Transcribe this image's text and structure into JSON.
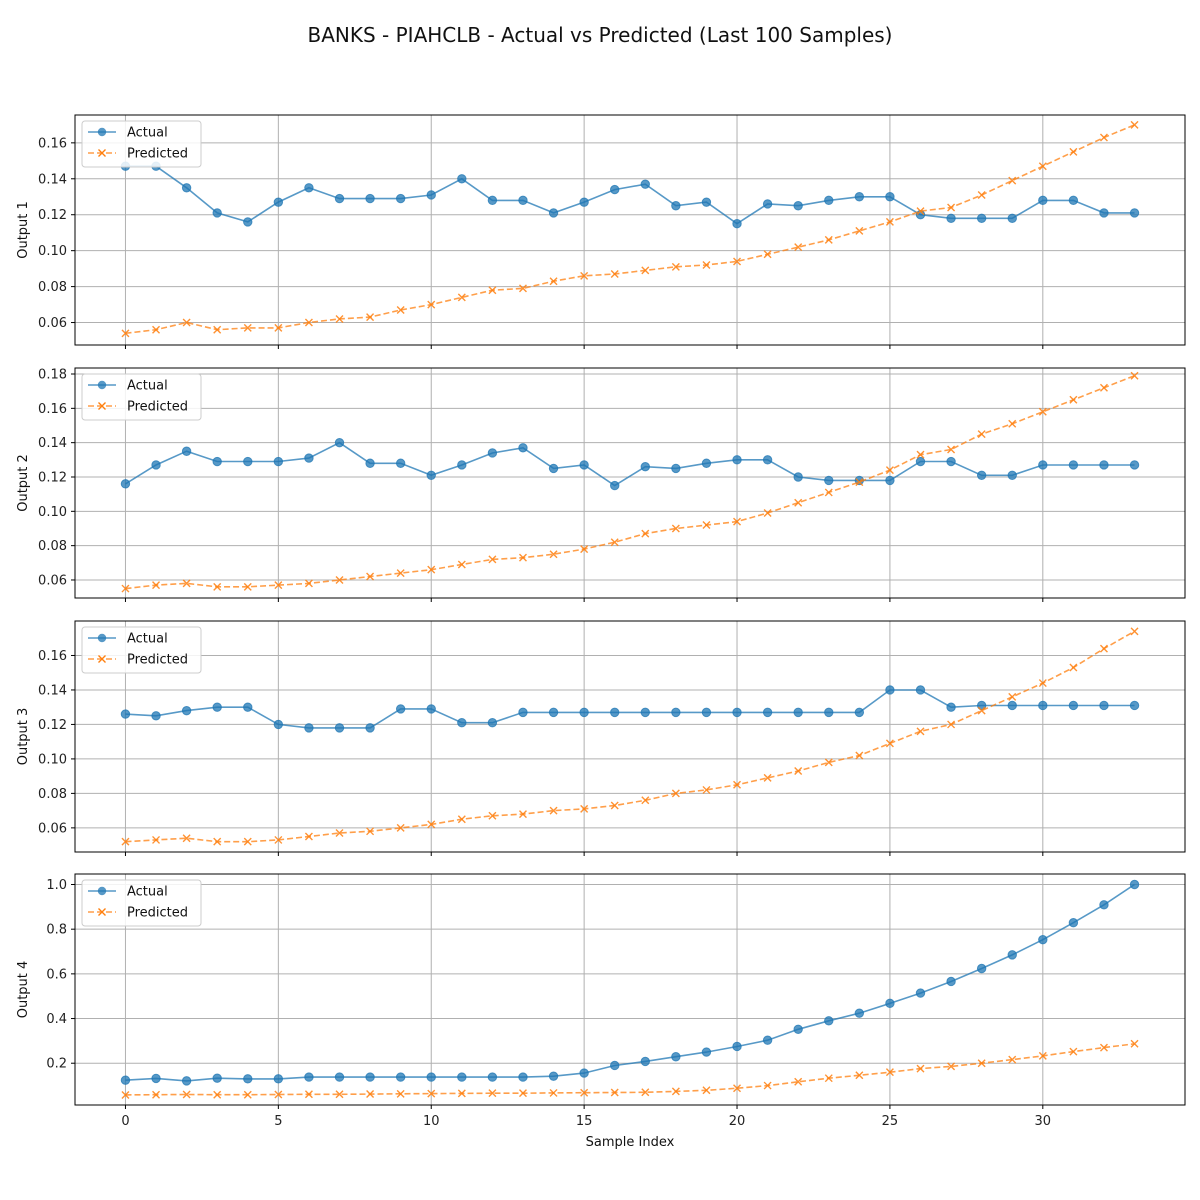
{
  "title": "BANKS - PIAHCLB - Actual vs Predicted (Last 100 Samples)",
  "colors": {
    "actual": "#1f77b4",
    "predicted": "#ff7f0e",
    "grid": "#b0b0b0"
  },
  "chart_data": {
    "type": "line",
    "xlabel": "Sample Index",
    "xlim": [
      -1.65,
      34.65
    ],
    "xticks": [
      0,
      5,
      10,
      15,
      20,
      25,
      30
    ],
    "grid": true,
    "legend_placement": "top-left",
    "x": [
      0,
      1,
      2,
      3,
      4,
      5,
      6,
      7,
      8,
      9,
      10,
      11,
      12,
      13,
      14,
      15,
      16,
      17,
      18,
      19,
      20,
      21,
      22,
      23,
      24,
      25,
      26,
      27,
      28,
      29,
      30,
      31,
      32,
      33
    ],
    "panels": [
      {
        "ylabel": "Output 1",
        "ylim": [
          0.0475,
          0.1755
        ],
        "yticks": [
          0.06,
          0.08,
          0.1,
          0.12,
          0.14,
          0.16
        ],
        "yticklabels": [
          "0.06",
          "0.08",
          "0.10",
          "0.12",
          "0.14",
          "0.16"
        ],
        "series": [
          {
            "name": "Actual",
            "values": [
              0.147,
              0.147,
              0.135,
              0.121,
              0.116,
              0.127,
              0.135,
              0.129,
              0.129,
              0.129,
              0.131,
              0.14,
              0.128,
              0.128,
              0.121,
              0.127,
              0.134,
              0.137,
              0.125,
              0.127,
              0.115,
              0.126,
              0.125,
              0.128,
              0.13,
              0.13,
              0.12,
              0.118,
              0.118,
              0.118,
              0.128,
              0.128,
              0.121,
              0.121
            ]
          },
          {
            "name": "Predicted",
            "values": [
              0.054,
              0.056,
              0.06,
              0.056,
              0.057,
              0.057,
              0.06,
              0.062,
              0.063,
              0.067,
              0.07,
              0.074,
              0.078,
              0.079,
              0.083,
              0.086,
              0.087,
              0.089,
              0.091,
              0.092,
              0.094,
              0.098,
              0.102,
              0.106,
              0.111,
              0.116,
              0.122,
              0.124,
              0.131,
              0.139,
              0.147,
              0.155,
              0.163,
              0.17
            ]
          }
        ]
      },
      {
        "ylabel": "Output 2",
        "ylim": [
          0.0495,
          0.1835
        ],
        "yticks": [
          0.06,
          0.08,
          0.1,
          0.12,
          0.14,
          0.16,
          0.18
        ],
        "yticklabels": [
          "0.06",
          "0.08",
          "0.10",
          "0.12",
          "0.14",
          "0.16",
          "0.18"
        ],
        "series": [
          {
            "name": "Actual",
            "values": [
              0.116,
              0.127,
              0.135,
              0.129,
              0.129,
              0.129,
              0.131,
              0.14,
              0.128,
              0.128,
              0.121,
              0.127,
              0.134,
              0.137,
              0.125,
              0.127,
              0.115,
              0.126,
              0.125,
              0.128,
              0.13,
              0.13,
              0.12,
              0.118,
              0.118,
              0.118,
              0.129,
              0.129,
              0.121,
              0.121,
              0.127,
              0.127,
              0.127,
              0.127
            ]
          },
          {
            "name": "Predicted",
            "values": [
              0.055,
              0.057,
              0.058,
              0.056,
              0.056,
              0.057,
              0.058,
              0.06,
              0.062,
              0.064,
              0.066,
              0.069,
              0.072,
              0.073,
              0.075,
              0.078,
              0.082,
              0.087,
              0.09,
              0.092,
              0.094,
              0.099,
              0.105,
              0.111,
              0.117,
              0.124,
              0.133,
              0.136,
              0.145,
              0.151,
              0.158,
              0.165,
              0.172,
              0.179
            ]
          }
        ]
      },
      {
        "ylabel": "Output 3",
        "ylim": [
          0.046,
          0.18
        ],
        "yticks": [
          0.06,
          0.08,
          0.1,
          0.12,
          0.14,
          0.16
        ],
        "yticklabels": [
          "0.06",
          "0.08",
          "0.10",
          "0.12",
          "0.14",
          "0.16"
        ],
        "series": [
          {
            "name": "Actual",
            "values": [
              0.126,
              0.125,
              0.128,
              0.13,
              0.13,
              0.12,
              0.118,
              0.118,
              0.118,
              0.129,
              0.129,
              0.121,
              0.121,
              0.127,
              0.127,
              0.127,
              0.127,
              0.127,
              0.127,
              0.127,
              0.127,
              0.127,
              0.127,
              0.127,
              0.127,
              0.14,
              0.14,
              0.13,
              0.131,
              0.131,
              0.131,
              0.131,
              0.131,
              0.131
            ]
          },
          {
            "name": "Predicted",
            "values": [
              0.052,
              0.053,
              0.054,
              0.052,
              0.052,
              0.053,
              0.055,
              0.057,
              0.058,
              0.06,
              0.062,
              0.065,
              0.067,
              0.068,
              0.07,
              0.071,
              0.073,
              0.076,
              0.08,
              0.082,
              0.085,
              0.089,
              0.093,
              0.098,
              0.102,
              0.109,
              0.116,
              0.12,
              0.128,
              0.136,
              0.144,
              0.153,
              0.164,
              0.174
            ]
          }
        ]
      },
      {
        "ylabel": "Output 4",
        "ylim": [
          0.013,
          1.047
        ],
        "yticks": [
          0.2,
          0.4,
          0.6,
          0.8,
          1.0
        ],
        "yticklabels": [
          "0.2",
          "0.4",
          "0.6",
          "0.8",
          "1.0"
        ],
        "series": [
          {
            "name": "Actual",
            "values": [
              0.124,
              0.132,
              0.121,
              0.133,
              0.13,
              0.13,
              0.138,
              0.138,
              0.138,
              0.138,
              0.138,
              0.138,
              0.138,
              0.138,
              0.142,
              0.156,
              0.19,
              0.208,
              0.229,
              0.25,
              0.275,
              0.303,
              0.352,
              0.39,
              0.424,
              0.468,
              0.514,
              0.566,
              0.624,
              0.685,
              0.753,
              0.829,
              0.909,
              1.0
            ]
          },
          {
            "name": "Predicted",
            "values": [
              0.058,
              0.059,
              0.06,
              0.059,
              0.059,
              0.06,
              0.061,
              0.061,
              0.062,
              0.063,
              0.064,
              0.065,
              0.066,
              0.066,
              0.067,
              0.068,
              0.069,
              0.07,
              0.074,
              0.079,
              0.088,
              0.1,
              0.117,
              0.133,
              0.146,
              0.16,
              0.176,
              0.186,
              0.2,
              0.216,
              0.233,
              0.252,
              0.27,
              0.287
            ]
          }
        ]
      }
    ]
  }
}
